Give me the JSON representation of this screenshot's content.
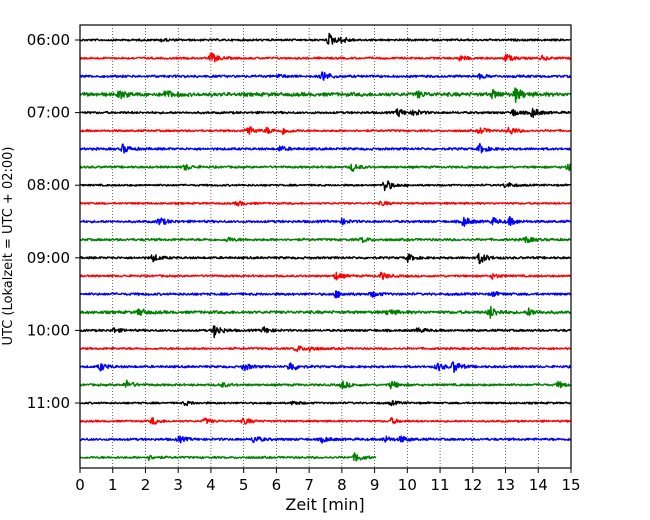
{
  "chart_data": {
    "type": "line",
    "title": "",
    "xlabel": "Zeit  [min]",
    "ylabel": "UTC (Lokalzeit = UTC + 02:00)",
    "xlim": [
      0,
      15
    ],
    "xticks": [
      "0",
      "1",
      "2",
      "3",
      "4",
      "5",
      "6",
      "7",
      "8",
      "9",
      "10",
      "11",
      "12",
      "13",
      "14",
      "15"
    ],
    "grid_x": true,
    "grid_style": "dotted",
    "y_tick_labels": [
      "06:00",
      "07:00",
      "08:00",
      "09:00",
      "10:00",
      "11:00"
    ],
    "trace_interval_minutes": 15,
    "series": [
      {
        "start": "06:00",
        "color": "#000000",
        "x_end": 15,
        "base_amplitude": 0.12,
        "events": [
          [
            7.6,
            0.9
          ],
          [
            8.0,
            0.35
          ],
          [
            2.5,
            0.2
          ]
        ]
      },
      {
        "start": "06:15",
        "color": "#ff0000",
        "x_end": 15,
        "base_amplitude": 0.12,
        "events": [
          [
            4.0,
            0.75
          ],
          [
            11.6,
            0.35
          ],
          [
            13.0,
            0.55
          ],
          [
            14.1,
            0.3
          ]
        ]
      },
      {
        "start": "06:30",
        "color": "#0000ff",
        "x_end": 15,
        "base_amplitude": 0.14,
        "events": [
          [
            7.4,
            0.75
          ],
          [
            6.0,
            0.25
          ],
          [
            12.2,
            0.25
          ]
        ]
      },
      {
        "start": "06:45",
        "color": "#008000",
        "x_end": 15,
        "base_amplitude": 0.22,
        "events": [
          [
            1.2,
            0.55
          ],
          [
            2.6,
            0.55
          ],
          [
            10.3,
            0.4
          ],
          [
            12.6,
            0.5
          ],
          [
            13.3,
            0.9
          ]
        ]
      },
      {
        "start": "07:00",
        "color": "#000000",
        "x_end": 15,
        "base_amplitude": 0.13,
        "events": [
          [
            9.7,
            0.6
          ],
          [
            10.2,
            0.45
          ],
          [
            13.2,
            0.5
          ],
          [
            13.8,
            0.7
          ]
        ]
      },
      {
        "start": "07:15",
        "color": "#ff0000",
        "x_end": 15,
        "base_amplitude": 0.12,
        "events": [
          [
            5.1,
            0.75
          ],
          [
            5.7,
            0.4
          ],
          [
            6.2,
            0.4
          ],
          [
            12.2,
            0.5
          ],
          [
            13.1,
            0.6
          ]
        ]
      },
      {
        "start": "07:30",
        "color": "#0000ff",
        "x_end": 15,
        "base_amplitude": 0.14,
        "events": [
          [
            1.3,
            0.6
          ],
          [
            6.1,
            0.35
          ],
          [
            12.2,
            0.65
          ]
        ]
      },
      {
        "start": "07:45",
        "color": "#008000",
        "x_end": 15,
        "base_amplitude": 0.13,
        "events": [
          [
            3.2,
            0.4
          ],
          [
            8.3,
            0.55
          ],
          [
            14.9,
            0.65
          ]
        ]
      },
      {
        "start": "08:00",
        "color": "#000000",
        "x_end": 15,
        "base_amplitude": 0.11,
        "events": [
          [
            9.3,
            0.95
          ],
          [
            13.0,
            0.45
          ]
        ]
      },
      {
        "start": "08:15",
        "color": "#ff0000",
        "x_end": 15,
        "base_amplitude": 0.11,
        "events": [
          [
            4.8,
            0.35
          ],
          [
            9.2,
            0.3
          ]
        ]
      },
      {
        "start": "08:30",
        "color": "#0000ff",
        "x_end": 15,
        "base_amplitude": 0.14,
        "events": [
          [
            2.4,
            0.6
          ],
          [
            8.0,
            0.35
          ],
          [
            11.7,
            0.7
          ],
          [
            12.6,
            0.45
          ],
          [
            13.1,
            0.55
          ]
        ]
      },
      {
        "start": "08:45",
        "color": "#008000",
        "x_end": 15,
        "base_amplitude": 0.14,
        "events": [
          [
            4.5,
            0.3
          ],
          [
            8.6,
            0.35
          ],
          [
            13.6,
            0.45
          ]
        ]
      },
      {
        "start": "09:00",
        "color": "#000000",
        "x_end": 15,
        "base_amplitude": 0.13,
        "events": [
          [
            2.2,
            0.55
          ],
          [
            10.0,
            0.5
          ],
          [
            12.2,
            0.85
          ]
        ]
      },
      {
        "start": "09:15",
        "color": "#ff0000",
        "x_end": 15,
        "base_amplitude": 0.12,
        "events": [
          [
            7.8,
            0.55
          ],
          [
            9.2,
            0.5
          ],
          [
            12.6,
            0.35
          ]
        ]
      },
      {
        "start": "09:30",
        "color": "#0000ff",
        "x_end": 15,
        "base_amplitude": 0.14,
        "events": [
          [
            7.8,
            0.45
          ],
          [
            8.9,
            0.4
          ],
          [
            12.6,
            0.3
          ]
        ]
      },
      {
        "start": "09:45",
        "color": "#008000",
        "x_end": 15,
        "base_amplitude": 0.17,
        "events": [
          [
            1.8,
            0.5
          ],
          [
            9.4,
            0.45
          ],
          [
            12.5,
            0.9
          ],
          [
            13.7,
            0.5
          ]
        ]
      },
      {
        "start": "10:00",
        "color": "#000000",
        "x_end": 15,
        "base_amplitude": 0.13,
        "events": [
          [
            1.0,
            0.35
          ],
          [
            4.1,
            0.85
          ],
          [
            5.6,
            0.45
          ],
          [
            10.3,
            0.35
          ]
        ]
      },
      {
        "start": "10:15",
        "color": "#ff0000",
        "x_end": 15,
        "base_amplitude": 0.12,
        "events": [
          [
            6.6,
            0.45
          ],
          [
            7.0,
            0.35
          ]
        ]
      },
      {
        "start": "10:30",
        "color": "#0000ff",
        "x_end": 15,
        "base_amplitude": 0.13,
        "events": [
          [
            0.6,
            0.55
          ],
          [
            5.0,
            0.55
          ],
          [
            6.4,
            0.75
          ],
          [
            10.9,
            0.6
          ],
          [
            11.4,
            0.85
          ]
        ]
      },
      {
        "start": "10:45",
        "color": "#008000",
        "x_end": 15,
        "base_amplitude": 0.13,
        "events": [
          [
            1.4,
            0.6
          ],
          [
            4.3,
            0.35
          ],
          [
            8.0,
            0.55
          ],
          [
            9.5,
            0.55
          ],
          [
            14.6,
            0.4
          ]
        ]
      },
      {
        "start": "11:00",
        "color": "#000000",
        "x_end": 15,
        "base_amplitude": 0.11,
        "events": [
          [
            3.2,
            0.3
          ],
          [
            6.5,
            0.3
          ],
          [
            9.5,
            0.3
          ]
        ]
      },
      {
        "start": "11:15",
        "color": "#ff0000",
        "x_end": 15,
        "base_amplitude": 0.11,
        "events": [
          [
            2.2,
            0.5
          ],
          [
            3.8,
            0.4
          ],
          [
            5.0,
            0.45
          ],
          [
            9.5,
            0.4
          ]
        ]
      },
      {
        "start": "11:30",
        "color": "#0000ff",
        "x_end": 15,
        "base_amplitude": 0.14,
        "events": [
          [
            3.0,
            0.45
          ],
          [
            5.3,
            0.5
          ],
          [
            7.4,
            0.4
          ],
          [
            9.3,
            0.45
          ],
          [
            9.8,
            0.4
          ]
        ]
      },
      {
        "start": "11:45",
        "color": "#008000",
        "x_end": 9.05,
        "base_amplitude": 0.12,
        "events": [
          [
            2.1,
            0.3
          ],
          [
            8.4,
            0.7
          ]
        ]
      }
    ]
  }
}
